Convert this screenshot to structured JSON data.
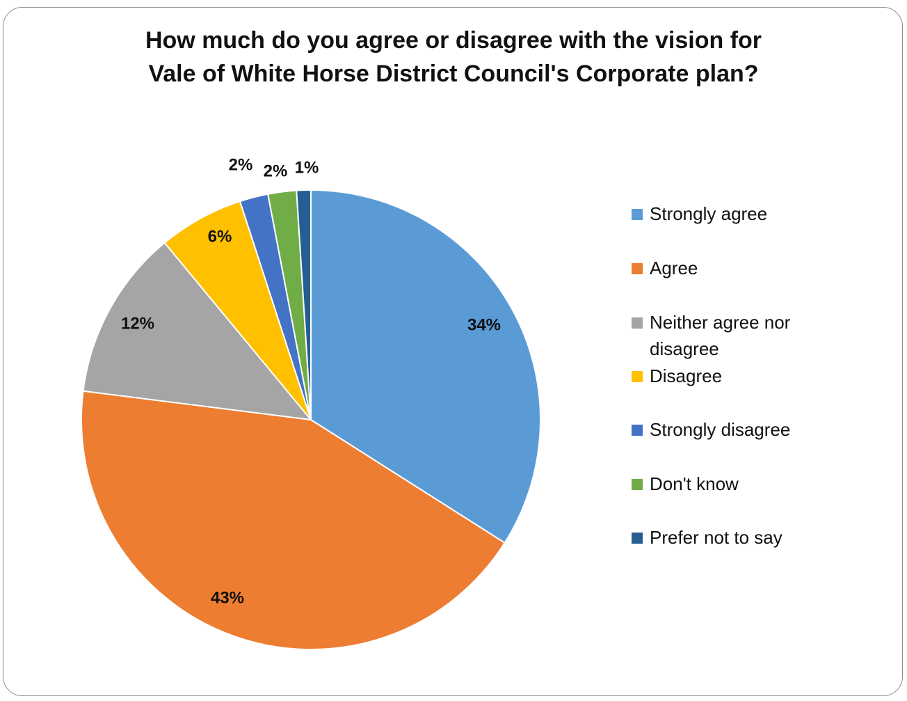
{
  "chart_data": {
    "type": "pie",
    "title": "How much do you agree or disagree with the vision for Vale of White Horse District Council's Corporate plan?",
    "title_lines": [
      "How much do you agree or disagree with the vision for",
      "Vale of White Horse District Council's Corporate plan?"
    ],
    "categories": [
      "Strongly agree",
      "Agree",
      "Neither agree nor disagree",
      "Disagree",
      "Strongly disagree",
      "Don't know",
      "Prefer not to say"
    ],
    "values": [
      34,
      43,
      12,
      6,
      2,
      2,
      1
    ],
    "data_labels": [
      "34%",
      "43%",
      "12%",
      "6%",
      "2%",
      "2%",
      "1%"
    ],
    "colors": [
      "#5b9bd5",
      "#ed7d31",
      "#a5a5a5",
      "#ffc000",
      "#4472c4",
      "#70ad47",
      "#255e91"
    ],
    "legend_position": "right",
    "start_angle": "12 o'clock",
    "direction": "clockwise"
  }
}
